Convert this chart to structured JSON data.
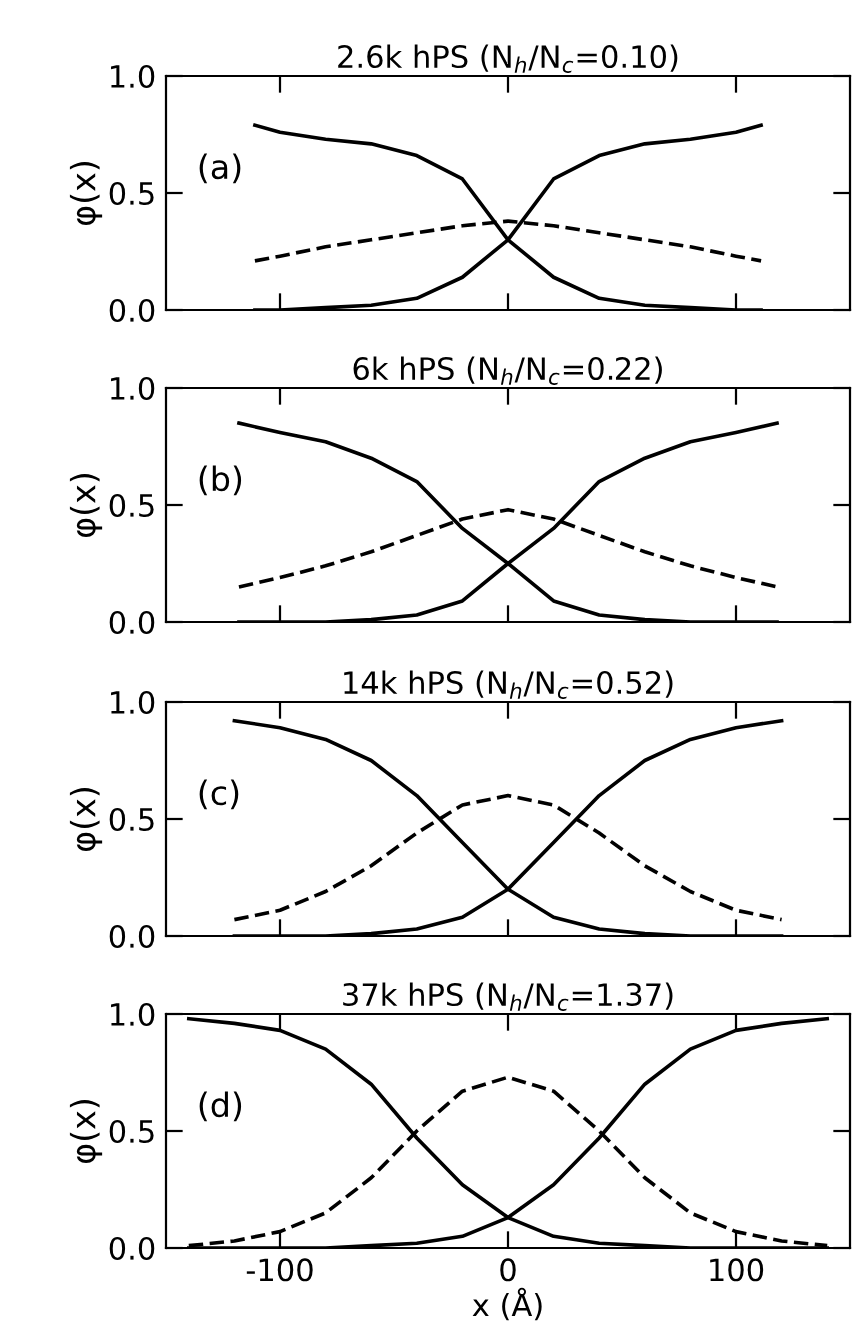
{
  "chart_data": [
    {
      "type": "line",
      "title": "2.6k hPS (N$_{h}$/N$_{c}$=0.10)",
      "ylabel": "φ(x)",
      "annotations": [
        "(a)"
      ],
      "tick_labels": "y",
      "xlim": [
        -150,
        150
      ],
      "xticks": [
        {
          "value": -100,
          "label": null
        },
        {
          "value": 0,
          "label": null
        },
        {
          "value": 100,
          "label": null
        }
      ],
      "ylim": [
        0,
        1
      ],
      "yticks": [
        {
          "value": 0,
          "label": "0.0"
        },
        {
          "value": 0.5,
          "label": "0.5"
        },
        {
          "value": 1,
          "label": "1.0"
        }
      ],
      "grid": false,
      "legend": false,
      "marker": "none",
      "x": [
        -111,
        -100,
        -80,
        -60,
        -40,
        -20,
        0,
        20,
        40,
        60,
        80,
        100,
        111
      ],
      "series": [
        {
          "color": "#000000",
          "line_style": "solid",
          "values": [
            0.79,
            0.76,
            0.73,
            0.71,
            0.66,
            0.56,
            0.3,
            0.14,
            0.05,
            0.02,
            0.01,
            0.0,
            0.0
          ]
        },
        {
          "color": "#000000",
          "line_style": "solid",
          "values": [
            0.0,
            0.0,
            0.01,
            0.02,
            0.05,
            0.14,
            0.3,
            0.56,
            0.66,
            0.71,
            0.73,
            0.76,
            0.79
          ]
        },
        {
          "color": "#000000",
          "line_style": "dashed",
          "values": [
            0.21,
            0.23,
            0.27,
            0.3,
            0.33,
            0.36,
            0.38,
            0.36,
            0.33,
            0.3,
            0.27,
            0.23,
            0.21
          ]
        }
      ]
    },
    {
      "type": "line",
      "title": "6k hPS (N$_{h}$/N$_{c}$=0.22)",
      "ylabel": "φ(x)",
      "annotations": [
        "(b)"
      ],
      "tick_labels": "y",
      "xlim": [
        -150,
        150
      ],
      "xticks": [
        {
          "value": -100,
          "label": null
        },
        {
          "value": 0,
          "label": null
        },
        {
          "value": 100,
          "label": null
        }
      ],
      "ylim": [
        0,
        1
      ],
      "yticks": [
        {
          "value": 0,
          "label": "0.0"
        },
        {
          "value": 0.5,
          "label": "0.5"
        },
        {
          "value": 1,
          "label": "1.0"
        }
      ],
      "grid": false,
      "legend": false,
      "marker": "none",
      "x": [
        -118,
        -100,
        -80,
        -60,
        -40,
        -20,
        0,
        20,
        40,
        60,
        80,
        100,
        118
      ],
      "series": [
        {
          "color": "#000000",
          "line_style": "solid",
          "values": [
            0.85,
            0.81,
            0.77,
            0.7,
            0.6,
            0.4,
            0.25,
            0.09,
            0.03,
            0.01,
            0.0,
            0.0,
            0.0
          ]
        },
        {
          "color": "#000000",
          "line_style": "solid",
          "values": [
            0.0,
            0.0,
            0.0,
            0.01,
            0.03,
            0.09,
            0.25,
            0.4,
            0.6,
            0.7,
            0.77,
            0.81,
            0.85
          ]
        },
        {
          "color": "#000000",
          "line_style": "dashed",
          "values": [
            0.15,
            0.19,
            0.24,
            0.3,
            0.37,
            0.44,
            0.48,
            0.44,
            0.37,
            0.3,
            0.24,
            0.19,
            0.15
          ]
        }
      ]
    },
    {
      "type": "line",
      "title": "14k hPS (N$_{h}$/N$_{c}$=0.52)",
      "ylabel": "φ(x)",
      "annotations": [
        "(c)"
      ],
      "tick_labels": "y",
      "xlim": [
        -150,
        150
      ],
      "xticks": [
        {
          "value": -100,
          "label": null
        },
        {
          "value": 0,
          "label": null
        },
        {
          "value": 100,
          "label": null
        }
      ],
      "ylim": [
        0,
        1
      ],
      "yticks": [
        {
          "value": 0,
          "label": "0.0"
        },
        {
          "value": 0.5,
          "label": "0.5"
        },
        {
          "value": 1,
          "label": "1.0"
        }
      ],
      "grid": false,
      "legend": false,
      "marker": "none",
      "x": [
        -120,
        -100,
        -80,
        -60,
        -40,
        -20,
        0,
        20,
        40,
        60,
        80,
        100,
        120
      ],
      "series": [
        {
          "color": "#000000",
          "line_style": "solid",
          "values": [
            0.92,
            0.89,
            0.84,
            0.75,
            0.6,
            0.4,
            0.2,
            0.08,
            0.03,
            0.01,
            0.0,
            0.0,
            0.0
          ]
        },
        {
          "color": "#000000",
          "line_style": "solid",
          "values": [
            0.0,
            0.0,
            0.0,
            0.01,
            0.03,
            0.08,
            0.2,
            0.4,
            0.6,
            0.75,
            0.84,
            0.89,
            0.92
          ]
        },
        {
          "color": "#000000",
          "line_style": "dashed",
          "values": [
            0.07,
            0.11,
            0.19,
            0.3,
            0.44,
            0.56,
            0.6,
            0.56,
            0.44,
            0.3,
            0.19,
            0.11,
            0.07
          ]
        }
      ]
    },
    {
      "type": "line",
      "title": "37k hPS (N$_{h}$/N$_{c}$=1.37)",
      "xlabel": "x (Å)",
      "ylabel": "φ(x)",
      "annotations": [
        "(d)"
      ],
      "xlim": [
        -150,
        150
      ],
      "xticks": [
        -100,
        0,
        100
      ],
      "ylim": [
        0,
        1
      ],
      "yticks": [
        {
          "value": 0,
          "label": "0.0"
        },
        {
          "value": 0.5,
          "label": "0.5"
        },
        {
          "value": 1,
          "label": "1.0"
        }
      ],
      "grid": false,
      "legend": false,
      "marker": "none",
      "x": [
        -140,
        -120,
        -100,
        -80,
        -60,
        -40,
        -20,
        0,
        20,
        40,
        60,
        80,
        100,
        120,
        140
      ],
      "series": [
        {
          "color": "#000000",
          "line_style": "solid",
          "values": [
            0.98,
            0.96,
            0.93,
            0.85,
            0.7,
            0.47,
            0.27,
            0.13,
            0.05,
            0.02,
            0.01,
            0.0,
            0.0,
            0.0,
            0.0
          ]
        },
        {
          "color": "#000000",
          "line_style": "solid",
          "values": [
            0.0,
            0.0,
            0.0,
            0.0,
            0.01,
            0.02,
            0.05,
            0.13,
            0.27,
            0.47,
            0.7,
            0.85,
            0.93,
            0.96,
            0.98
          ]
        },
        {
          "color": "#000000",
          "line_style": "dashed",
          "values": [
            0.01,
            0.03,
            0.07,
            0.15,
            0.3,
            0.5,
            0.67,
            0.73,
            0.67,
            0.5,
            0.3,
            0.15,
            0.07,
            0.03,
            0.01
          ]
        }
      ]
    }
  ]
}
